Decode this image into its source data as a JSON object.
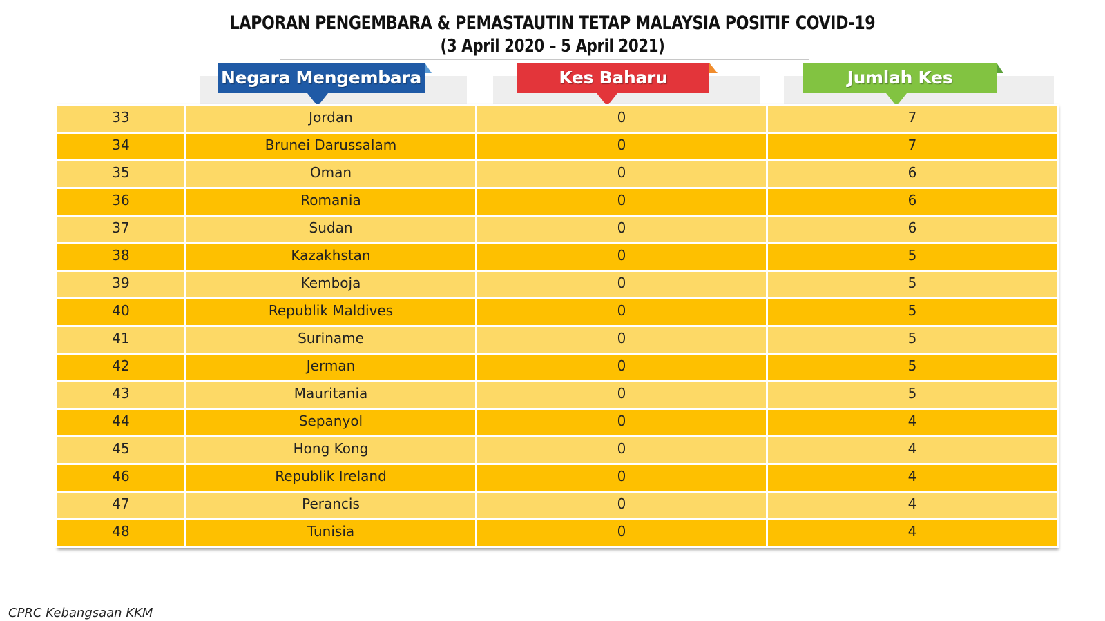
{
  "title": {
    "line1": "LAPORAN PENGEMBARA & PEMASTAUTIN TETAP MALAYSIA POSITIF COVID-19",
    "line2": "(3 April 2020 – 5 April 2021)"
  },
  "headers": {
    "country": "Negara Mengembara",
    "new_cases": "Kes Baharu",
    "total_cases": "Jumlah Kes"
  },
  "colors": {
    "header_country": "#1f5aa6",
    "header_new": "#e3353a",
    "header_total": "#82c341",
    "row_light": "#fdd966",
    "row_dark": "#fec000"
  },
  "footer": "CPRC Kebangsaan KKM",
  "chart_data": {
    "type": "table",
    "columns": [
      "",
      "Negara Mengembara",
      "Kes Baharu",
      "Jumlah Kes"
    ],
    "rows": [
      {
        "no": "33",
        "country": "Jordan",
        "new": "0",
        "total": "7"
      },
      {
        "no": "34",
        "country": "Brunei Darussalam",
        "new": "0",
        "total": "7"
      },
      {
        "no": "35",
        "country": "Oman",
        "new": "0",
        "total": "6"
      },
      {
        "no": "36",
        "country": "Romania",
        "new": "0",
        "total": "6"
      },
      {
        "no": "37",
        "country": "Sudan",
        "new": "0",
        "total": "6"
      },
      {
        "no": "38",
        "country": "Kazakhstan",
        "new": "0",
        "total": "5"
      },
      {
        "no": "39",
        "country": "Kemboja",
        "new": "0",
        "total": "5"
      },
      {
        "no": "40",
        "country": "Republik Maldives",
        "new": "0",
        "total": "5"
      },
      {
        "no": "41",
        "country": "Suriname",
        "new": "0",
        "total": "5"
      },
      {
        "no": "42",
        "country": "Jerman",
        "new": "0",
        "total": "5"
      },
      {
        "no": "43",
        "country": "Mauritania",
        "new": "0",
        "total": "5"
      },
      {
        "no": "44",
        "country": "Sepanyol",
        "new": "0",
        "total": "4"
      },
      {
        "no": "45",
        "country": "Hong Kong",
        "new": "0",
        "total": "4"
      },
      {
        "no": "46",
        "country": "Republik Ireland",
        "new": "0",
        "total": "4"
      },
      {
        "no": "47",
        "country": "Perancis",
        "new": "0",
        "total": "4"
      },
      {
        "no": "48",
        "country": "Tunisia",
        "new": "0",
        "total": "4"
      }
    ]
  }
}
